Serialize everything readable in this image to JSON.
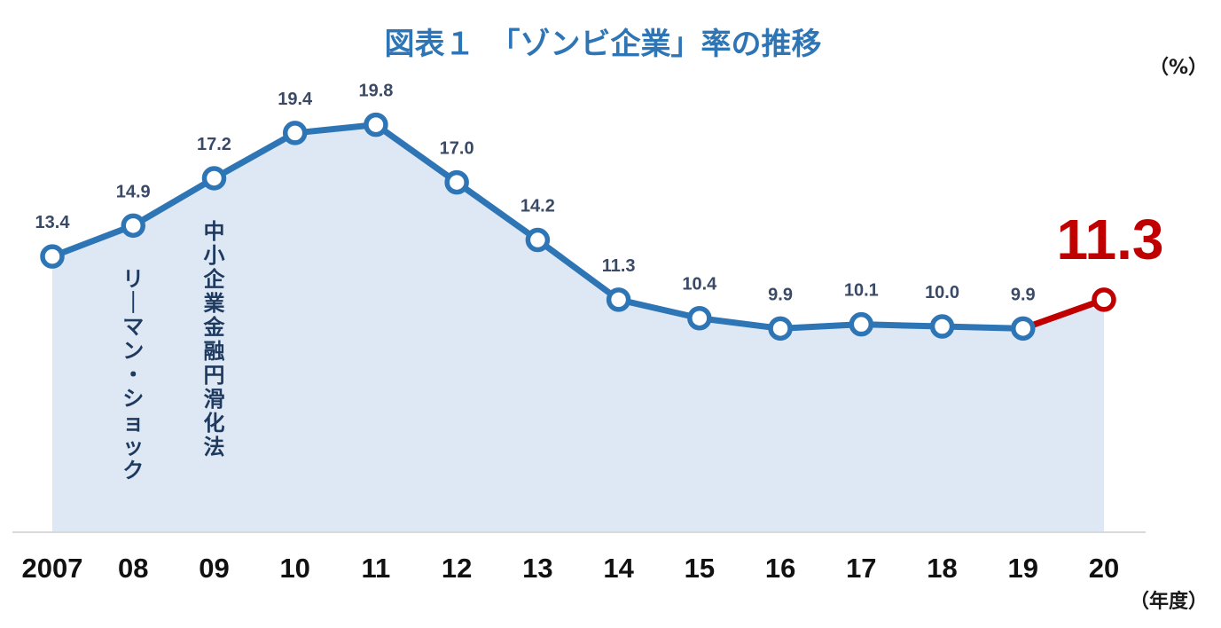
{
  "chart_data": {
    "type": "line",
    "title": "図表１　「ゾンビ企業」率の推移",
    "ylabel": "（%）",
    "xlabel": "（年度）",
    "categories": [
      "2007",
      "08",
      "09",
      "10",
      "11",
      "12",
      "13",
      "14",
      "15",
      "16",
      "17",
      "18",
      "19",
      "20"
    ],
    "values": [
      13.4,
      14.9,
      17.2,
      19.4,
      19.8,
      17.0,
      14.2,
      11.3,
      10.4,
      9.9,
      10.1,
      10.0,
      9.9,
      11.3
    ],
    "value_labels": [
      "13.4",
      "14.9",
      "17.2",
      "19.4",
      "19.8",
      "17.0",
      "14.2",
      "11.3",
      "10.4",
      "9.9",
      "10.1",
      "10.0",
      "9.9",
      "11.3"
    ],
    "ylim": [
      0,
      20
    ],
    "grid": false,
    "area_fill": true,
    "annotations": [
      {
        "category": "08",
        "text": "リーマン・ショック"
      },
      {
        "category": "09",
        "text": "中小企業金融円滑化法"
      }
    ],
    "highlight": {
      "category": "20",
      "value": 11.3,
      "label": "11.3"
    },
    "colors": {
      "line": "#2e75b6",
      "area": "#dee8f5",
      "highlight": "#c00000",
      "title": "#2e75b6",
      "data_label": "#3a4a66",
      "annotation": "#1f3a5f",
      "axis": "#d9d9d9"
    }
  }
}
